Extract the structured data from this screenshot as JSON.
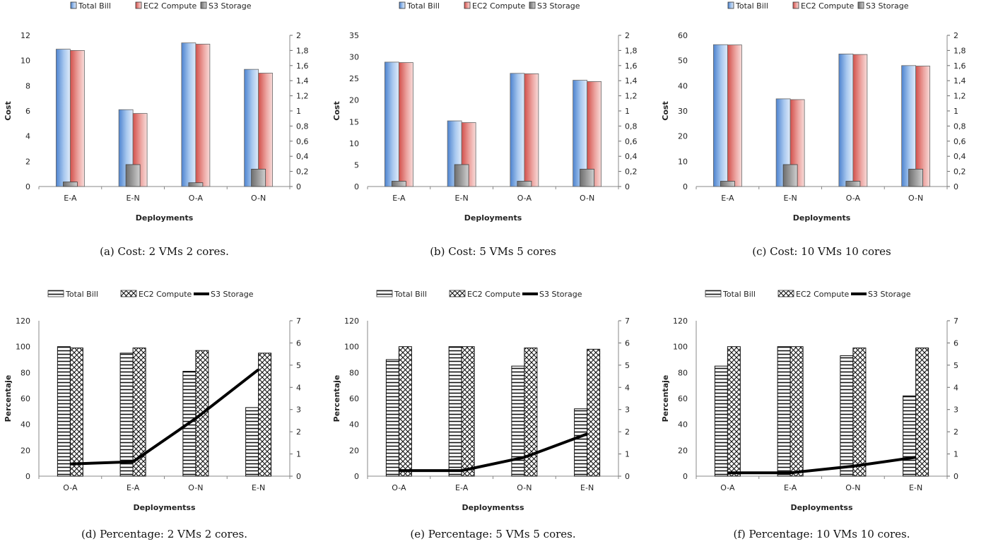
{
  "colors": {
    "total_bill": "#7da7dd",
    "ec2_compute": "#e07a76",
    "s3_storage": "#8a8a8a"
  },
  "chart_data": [
    {
      "id": "a",
      "type": "bar",
      "caption": "(a) Cost: 2 VMs 2 cores.",
      "style": "color",
      "categories": [
        "E-A",
        "E-N",
        "O-A",
        "O-N"
      ],
      "xlabel": "Deployments",
      "ylabel": "Cost",
      "ylim": [
        0,
        12
      ],
      "yticks": [
        "0",
        "2",
        "4",
        "6",
        "8",
        "10",
        "12"
      ],
      "y2lim": [
        0,
        2
      ],
      "y2ticks": [
        "0",
        "0,2",
        "0,4",
        "0,6",
        "0,8",
        "1",
        "1,2",
        "1,4",
        "1,6",
        "1,8",
        "2"
      ],
      "legend_position": "top",
      "series": [
        {
          "name": "Total Bill",
          "axis": "left",
          "kind": "bar",
          "values": [
            10.9,
            6.1,
            11.4,
            9.3
          ]
        },
        {
          "name": "EC2 Compute",
          "axis": "left",
          "kind": "bar",
          "values": [
            10.8,
            5.8,
            11.3,
            9.0
          ]
        },
        {
          "name": "S3 Storage",
          "axis": "right",
          "kind": "bar",
          "values": [
            0.06,
            0.29,
            0.05,
            0.23
          ]
        }
      ]
    },
    {
      "id": "b",
      "type": "bar",
      "caption": "(b) Cost: 5 VMs 5 cores",
      "style": "color",
      "categories": [
        "E-A",
        "E-N",
        "O-A",
        "O-N"
      ],
      "xlabel": "Deployments",
      "ylabel": "Cost",
      "ylim": [
        0,
        35
      ],
      "yticks": [
        "0",
        "5",
        "10",
        "15",
        "20",
        "25",
        "30",
        "35"
      ],
      "y2lim": [
        0,
        2
      ],
      "y2ticks": [
        "0",
        "0,2",
        "0,4",
        "0,6",
        "0,8",
        "1",
        "1,2",
        "1,4",
        "1,6",
        "1,8",
        "2"
      ],
      "legend_position": "top",
      "series": [
        {
          "name": "Total Bill",
          "axis": "left",
          "kind": "bar",
          "values": [
            28.8,
            15.2,
            26.2,
            24.6
          ]
        },
        {
          "name": "EC2 Compute",
          "axis": "left",
          "kind": "bar",
          "values": [
            28.7,
            14.8,
            26.1,
            24.3
          ]
        },
        {
          "name": "S3 Storage",
          "axis": "right",
          "kind": "bar",
          "values": [
            0.07,
            0.29,
            0.07,
            0.23
          ]
        }
      ]
    },
    {
      "id": "c",
      "type": "bar",
      "caption": "(c) Cost: 10 VMs 10 cores",
      "style": "color",
      "categories": [
        "E-A",
        "E-N",
        "O-A",
        "O-N"
      ],
      "xlabel": "Deployments",
      "ylabel": "Cost",
      "ylim": [
        0,
        60
      ],
      "yticks": [
        "0",
        "10",
        "20",
        "30",
        "40",
        "50",
        "60"
      ],
      "y2lim": [
        0,
        2
      ],
      "y2ticks": [
        "0",
        "0,2",
        "0,4",
        "0,6",
        "0,8",
        "1",
        "1,2",
        "1,4",
        "1,6",
        "1,8",
        "2"
      ],
      "legend_position": "top",
      "series": [
        {
          "name": "Total Bill",
          "axis": "left",
          "kind": "bar",
          "values": [
            56.3,
            34.8,
            52.6,
            48.0
          ]
        },
        {
          "name": "EC2 Compute",
          "axis": "left",
          "kind": "bar",
          "values": [
            56.2,
            34.5,
            52.4,
            47.8
          ]
        },
        {
          "name": "S3 Storage",
          "axis": "right",
          "kind": "bar",
          "values": [
            0.07,
            0.29,
            0.07,
            0.23
          ]
        }
      ]
    },
    {
      "id": "d",
      "type": "bar",
      "caption": "(d) Percentage: 2 VMs 2 cores.",
      "style": "pattern",
      "categories": [
        "O-A",
        "E-A",
        "O-N",
        "E-N"
      ],
      "xlabel": "Deploymentss",
      "ylabel": "Percentaje",
      "ylim": [
        0,
        120
      ],
      "yticks": [
        "0",
        "20",
        "40",
        "60",
        "80",
        "100",
        "120"
      ],
      "y2lim": [
        0,
        7
      ],
      "y2ticks": [
        "0",
        "1",
        "2",
        "3",
        "4",
        "5",
        "6",
        "7"
      ],
      "legend_position": "top",
      "series": [
        {
          "name": "Total Bill",
          "axis": "left",
          "kind": "bar",
          "values": [
            100,
            95,
            81,
            53
          ]
        },
        {
          "name": "EC2 Compute",
          "axis": "left",
          "kind": "bar",
          "values": [
            99,
            99,
            97,
            95
          ]
        },
        {
          "name": "S3 Storage",
          "axis": "right",
          "kind": "line",
          "values": [
            0.55,
            0.65,
            2.6,
            4.8
          ]
        }
      ]
    },
    {
      "id": "e",
      "type": "bar",
      "caption": "(e) Percentage: 5 VMs 5 cores.",
      "style": "pattern",
      "categories": [
        "O-A",
        "E-A",
        "O-N",
        "E-N"
      ],
      "xlabel": "Deploymentss",
      "ylabel": "Percentaje",
      "ylim": [
        0,
        120
      ],
      "yticks": [
        "0",
        "20",
        "40",
        "60",
        "80",
        "100",
        "120"
      ],
      "y2lim": [
        0,
        7
      ],
      "y2ticks": [
        "0",
        "1",
        "2",
        "3",
        "4",
        "5",
        "6",
        "7"
      ],
      "legend_position": "top",
      "series": [
        {
          "name": "Total Bill",
          "axis": "left",
          "kind": "bar",
          "values": [
            90,
            100,
            85,
            52
          ]
        },
        {
          "name": "EC2 Compute",
          "axis": "left",
          "kind": "bar",
          "values": [
            100,
            100,
            99,
            98
          ]
        },
        {
          "name": "S3 Storage",
          "axis": "right",
          "kind": "line",
          "values": [
            0.25,
            0.25,
            0.85,
            1.9
          ]
        }
      ]
    },
    {
      "id": "f",
      "type": "bar",
      "caption": "(f) Percentage: 10 VMs 10 cores.",
      "style": "pattern",
      "categories": [
        "O-A",
        "E-A",
        "O-N",
        "E-N"
      ],
      "xlabel": "Deploymentss",
      "ylabel": "Percentaje",
      "ylim": [
        0,
        120
      ],
      "yticks": [
        "0",
        "20",
        "40",
        "60",
        "80",
        "100",
        "120"
      ],
      "y2lim": [
        0,
        7
      ],
      "y2ticks": [
        "0",
        "1",
        "2",
        "3",
        "4",
        "5",
        "6",
        "7"
      ],
      "legend_position": "top",
      "series": [
        {
          "name": "Total Bill",
          "axis": "left",
          "kind": "bar",
          "values": [
            85,
            100,
            93,
            62
          ]
        },
        {
          "name": "EC2 Compute",
          "axis": "left",
          "kind": "bar",
          "values": [
            100,
            100,
            99,
            99
          ]
        },
        {
          "name": "S3 Storage",
          "axis": "right",
          "kind": "line",
          "values": [
            0.15,
            0.15,
            0.45,
            0.85
          ]
        }
      ]
    }
  ]
}
